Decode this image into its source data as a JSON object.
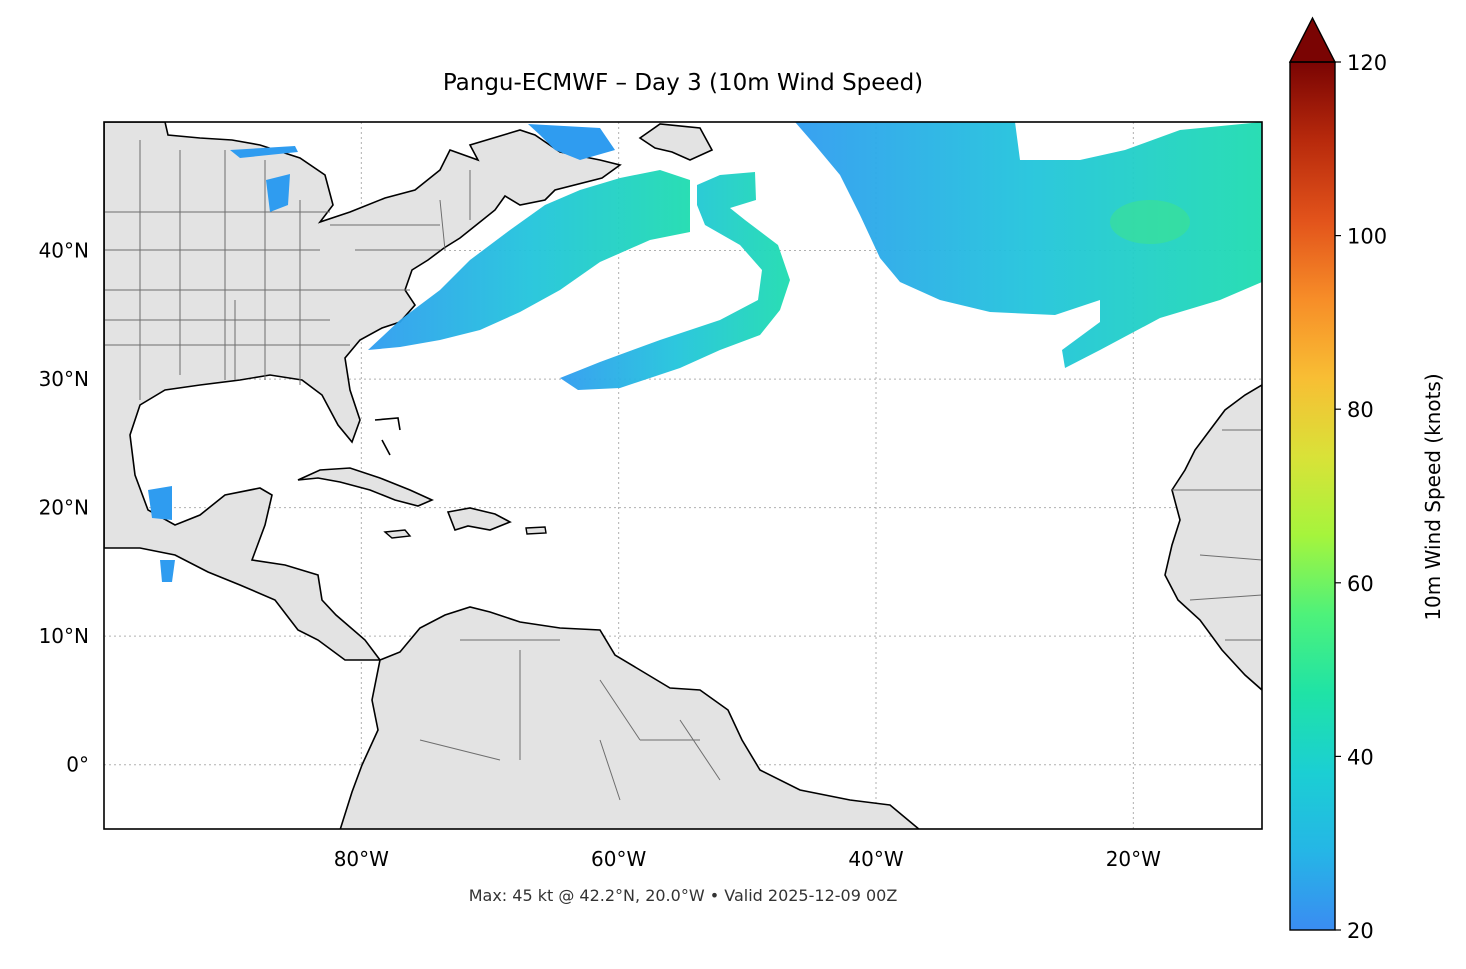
{
  "map": {
    "title": "Pangu-ECMWF – Day 3 (10m Wind Speed)",
    "footnote": "Max: 45 kt @ 42.2°N, 20.0°W • Valid 2025-12-09 00Z",
    "extent": {
      "lon_min": -100,
      "lon_max": -10,
      "lat_min": -5,
      "lat_max": 50
    },
    "lat_ticks": [
      {
        "value": 0,
        "label": "0°"
      },
      {
        "value": 10,
        "label": "10°N"
      },
      {
        "value": 20,
        "label": "20°N"
      },
      {
        "value": 30,
        "label": "30°N"
      },
      {
        "value": 40,
        "label": "40°N"
      }
    ],
    "lon_ticks": [
      {
        "value": -80,
        "label": "80°W"
      },
      {
        "value": -60,
        "label": "60°W"
      },
      {
        "value": -40,
        "label": "40°W"
      },
      {
        "value": -20,
        "label": "20°W"
      }
    ],
    "max_wind": {
      "kt": 45,
      "lat": 42.2,
      "lon": -20.0
    },
    "colors": {
      "land": "#e3e3e3",
      "coast": "#000000",
      "borders": "#6e6e6e",
      "grid": "#b0b0b0"
    }
  },
  "colorbar": {
    "label": "10m Wind Speed (knots)",
    "min": 20,
    "max": 120,
    "extend": "max",
    "ticks": [
      20,
      40,
      60,
      80,
      100,
      120
    ],
    "colormap": "turbo",
    "stops": [
      "#3a8cf2",
      "#25b6e6",
      "#1bcfd3",
      "#1fe3a6",
      "#4ef27a",
      "#a6f43c",
      "#d9e238",
      "#f8be34",
      "#f78d28",
      "#e2531b",
      "#b82a0c",
      "#7a0403"
    ]
  }
}
